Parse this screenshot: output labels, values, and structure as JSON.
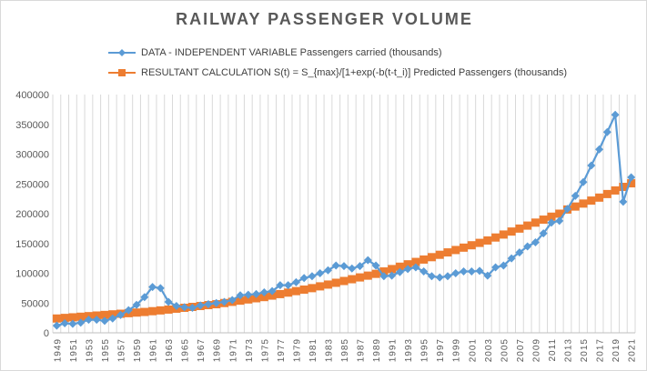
{
  "chart_data": {
    "type": "line",
    "title": "RAILWAY PASSENGER VOLUME",
    "xlabel": "",
    "ylabel": "",
    "ylim": [
      0,
      400000
    ],
    "yticks": [
      0,
      50000,
      100000,
      150000,
      200000,
      250000,
      300000,
      350000,
      400000
    ],
    "grid": "vertical",
    "legend_position": "top",
    "x": [
      1949,
      1950,
      1951,
      1952,
      1953,
      1954,
      1955,
      1956,
      1957,
      1958,
      1959,
      1960,
      1961,
      1962,
      1963,
      1964,
      1965,
      1966,
      1967,
      1968,
      1969,
      1970,
      1971,
      1972,
      1973,
      1974,
      1975,
      1976,
      1977,
      1978,
      1979,
      1980,
      1981,
      1982,
      1983,
      1984,
      1985,
      1986,
      1987,
      1988,
      1989,
      1990,
      1991,
      1992,
      1993,
      1994,
      1995,
      1996,
      1997,
      1998,
      1999,
      2000,
      2001,
      2002,
      2003,
      2004,
      2005,
      2006,
      2007,
      2008,
      2009,
      2010,
      2011,
      2012,
      2013,
      2014,
      2015,
      2016,
      2017,
      2018,
      2019,
      2020,
      2021
    ],
    "series": [
      {
        "name": "DATA - INDEPENDENT VARIABLE Passengers  carried (thousands)",
        "color": "#5B9BD5",
        "marker": "diamond",
        "values": [
          12000,
          16000,
          15000,
          17000,
          22000,
          22000,
          20000,
          24000,
          30000,
          38000,
          47000,
          60000,
          77000,
          75000,
          52000,
          45000,
          43000,
          42000,
          46000,
          48000,
          50000,
          52000,
          55000,
          63000,
          64000,
          65000,
          68000,
          70000,
          80000,
          80000,
          85000,
          92000,
          95000,
          100000,
          105000,
          113000,
          112000,
          108000,
          112000,
          122000,
          113000,
          95000,
          96000,
          102000,
          107000,
          110000,
          103000,
          95000,
          93000,
          95000,
          100000,
          103000,
          103000,
          104000,
          96000,
          110000,
          113000,
          125000,
          135000,
          145000,
          152000,
          167000,
          185000,
          188000,
          208000,
          230000,
          253000,
          281000,
          308000,
          337000,
          366000,
          220000,
          261000
        ]
      },
      {
        "name": "RESULTANT CALCULATION S(t) = S_{max}/[1+exp(-b(t-t_i)] Predicted Passengers (thousands)",
        "color": "#ED7D31",
        "marker": "square",
        "values": [
          24000,
          25000,
          26000,
          27000,
          28000,
          29000,
          30000,
          31000,
          32000,
          33000,
          34000,
          35000,
          36300,
          37600,
          39000,
          40500,
          42000,
          43500,
          45000,
          46500,
          48000,
          50000,
          52000,
          54000,
          56000,
          58000,
          60000,
          62500,
          65000,
          67500,
          70000,
          72500,
          75000,
          78000,
          81000,
          84000,
          87000,
          90000,
          93000,
          96000,
          99000,
          103000,
          107000,
          111000,
          115000,
          119000,
          123000,
          127000,
          131000,
          135000,
          139000,
          143000,
          147000,
          151000,
          155000,
          160000,
          165000,
          170000,
          175000,
          180000,
          185000,
          190000,
          195000,
          200000,
          207000,
          212000,
          217000,
          222000,
          227000,
          233000,
          239000,
          245000,
          251000
        ]
      }
    ]
  }
}
